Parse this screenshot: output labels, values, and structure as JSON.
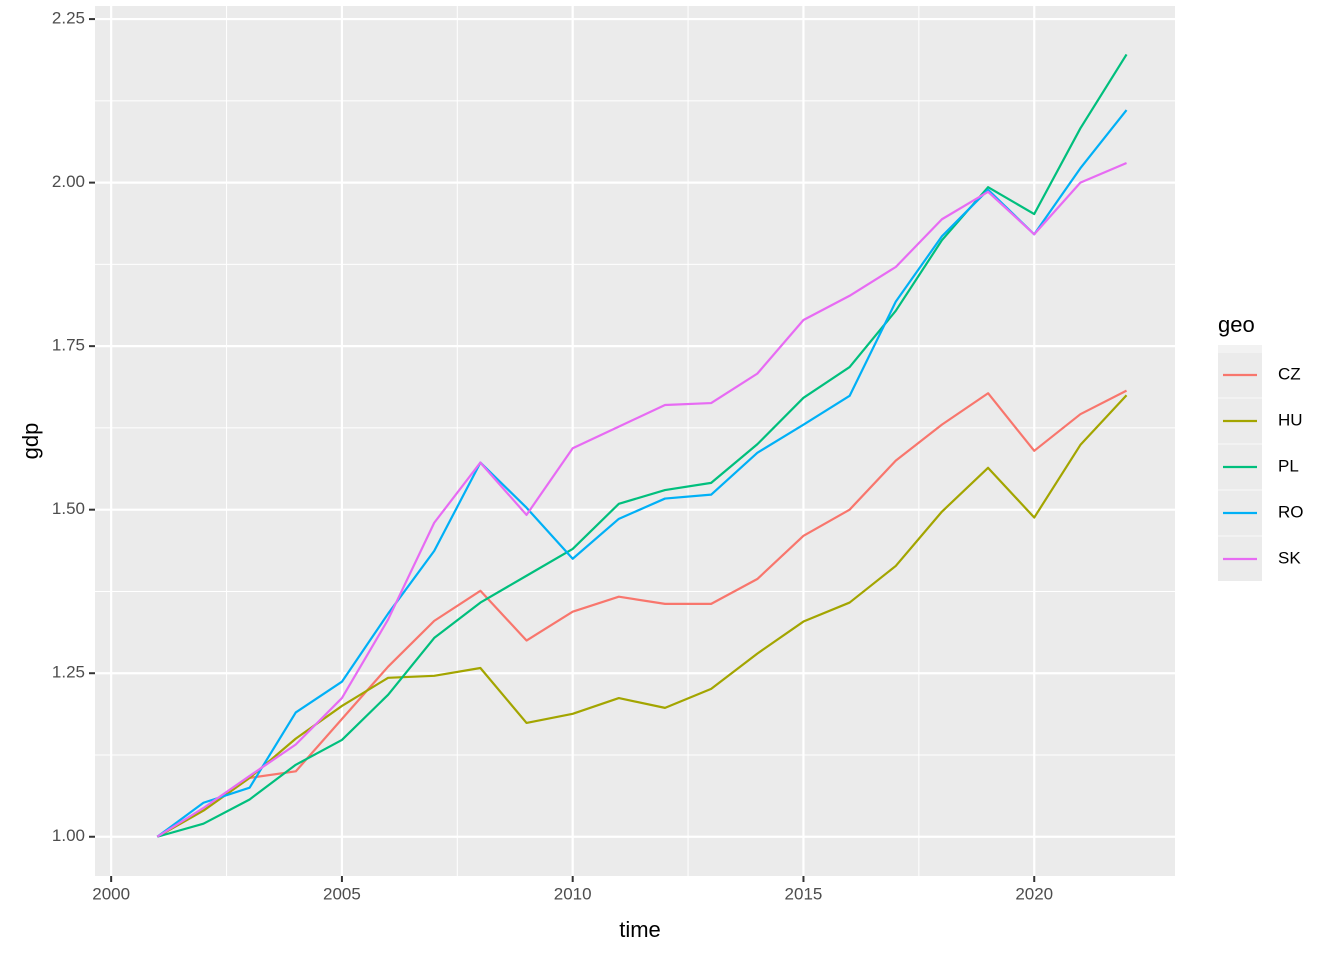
{
  "chart_data": {
    "type": "line",
    "x_label": "time",
    "y_label": "gdp",
    "legend_title": "geo",
    "x": [
      2001,
      2002,
      2003,
      2004,
      2005,
      2006,
      2007,
      2008,
      2009,
      2010,
      2011,
      2012,
      2013,
      2014,
      2015,
      2016,
      2017,
      2018,
      2019,
      2020,
      2021,
      2022
    ],
    "series": [
      {
        "name": "CZ",
        "color": "#F8766D",
        "values": [
          1.0,
          1.04,
          1.09,
          1.1,
          1.18,
          1.26,
          1.33,
          1.376,
          1.3,
          1.344,
          1.367,
          1.356,
          1.356,
          1.394,
          1.46,
          1.5,
          1.575,
          1.63,
          1.678,
          1.59,
          1.646,
          1.682
        ]
      },
      {
        "name": "HU",
        "color": "#A3A500",
        "values": [
          1.0,
          1.04,
          1.09,
          1.15,
          1.2,
          1.243,
          1.246,
          1.258,
          1.174,
          1.188,
          1.212,
          1.197,
          1.226,
          1.28,
          1.329,
          1.358,
          1.414,
          1.497,
          1.564,
          1.488,
          1.599,
          1.675
        ]
      },
      {
        "name": "PL",
        "color": "#00BF7D",
        "values": [
          1.0,
          1.02,
          1.057,
          1.11,
          1.148,
          1.217,
          1.304,
          1.358,
          1.399,
          1.44,
          1.509,
          1.53,
          1.541,
          1.6,
          1.671,
          1.718,
          1.804,
          1.912,
          1.993,
          1.952,
          2.083,
          2.196
        ]
      },
      {
        "name": "RO",
        "color": "#00B0F6",
        "values": [
          1.0,
          1.052,
          1.075,
          1.19,
          1.237,
          1.341,
          1.437,
          1.572,
          1.503,
          1.425,
          1.486,
          1.517,
          1.523,
          1.587,
          1.63,
          1.674,
          1.818,
          1.918,
          1.989,
          1.921,
          2.022,
          2.111
        ]
      },
      {
        "name": "SK",
        "color": "#E76BF3",
        "values": [
          1.0,
          1.044,
          1.093,
          1.141,
          1.212,
          1.332,
          1.48,
          1.572,
          1.492,
          1.594,
          1.627,
          1.66,
          1.663,
          1.708,
          1.79,
          1.827,
          1.871,
          1.944,
          1.986,
          1.921,
          2.0,
          2.03
        ]
      }
    ],
    "xlim": [
      1999.65,
      2023.05
    ],
    "xticks": [
      2000,
      2005,
      2010,
      2015,
      2020
    ],
    "ylim": [
      0.94,
      2.27
    ],
    "yticks": [
      {
        "value": 1,
        "label": "1.00"
      },
      {
        "value": 1.25,
        "label": "1.25"
      },
      {
        "value": 1.5,
        "label": "1.50"
      },
      {
        "value": 1.75,
        "label": "1.75"
      },
      {
        "value": 2,
        "label": "2.00"
      },
      {
        "value": 2.25,
        "label": "2.25"
      }
    ],
    "grid": true
  }
}
